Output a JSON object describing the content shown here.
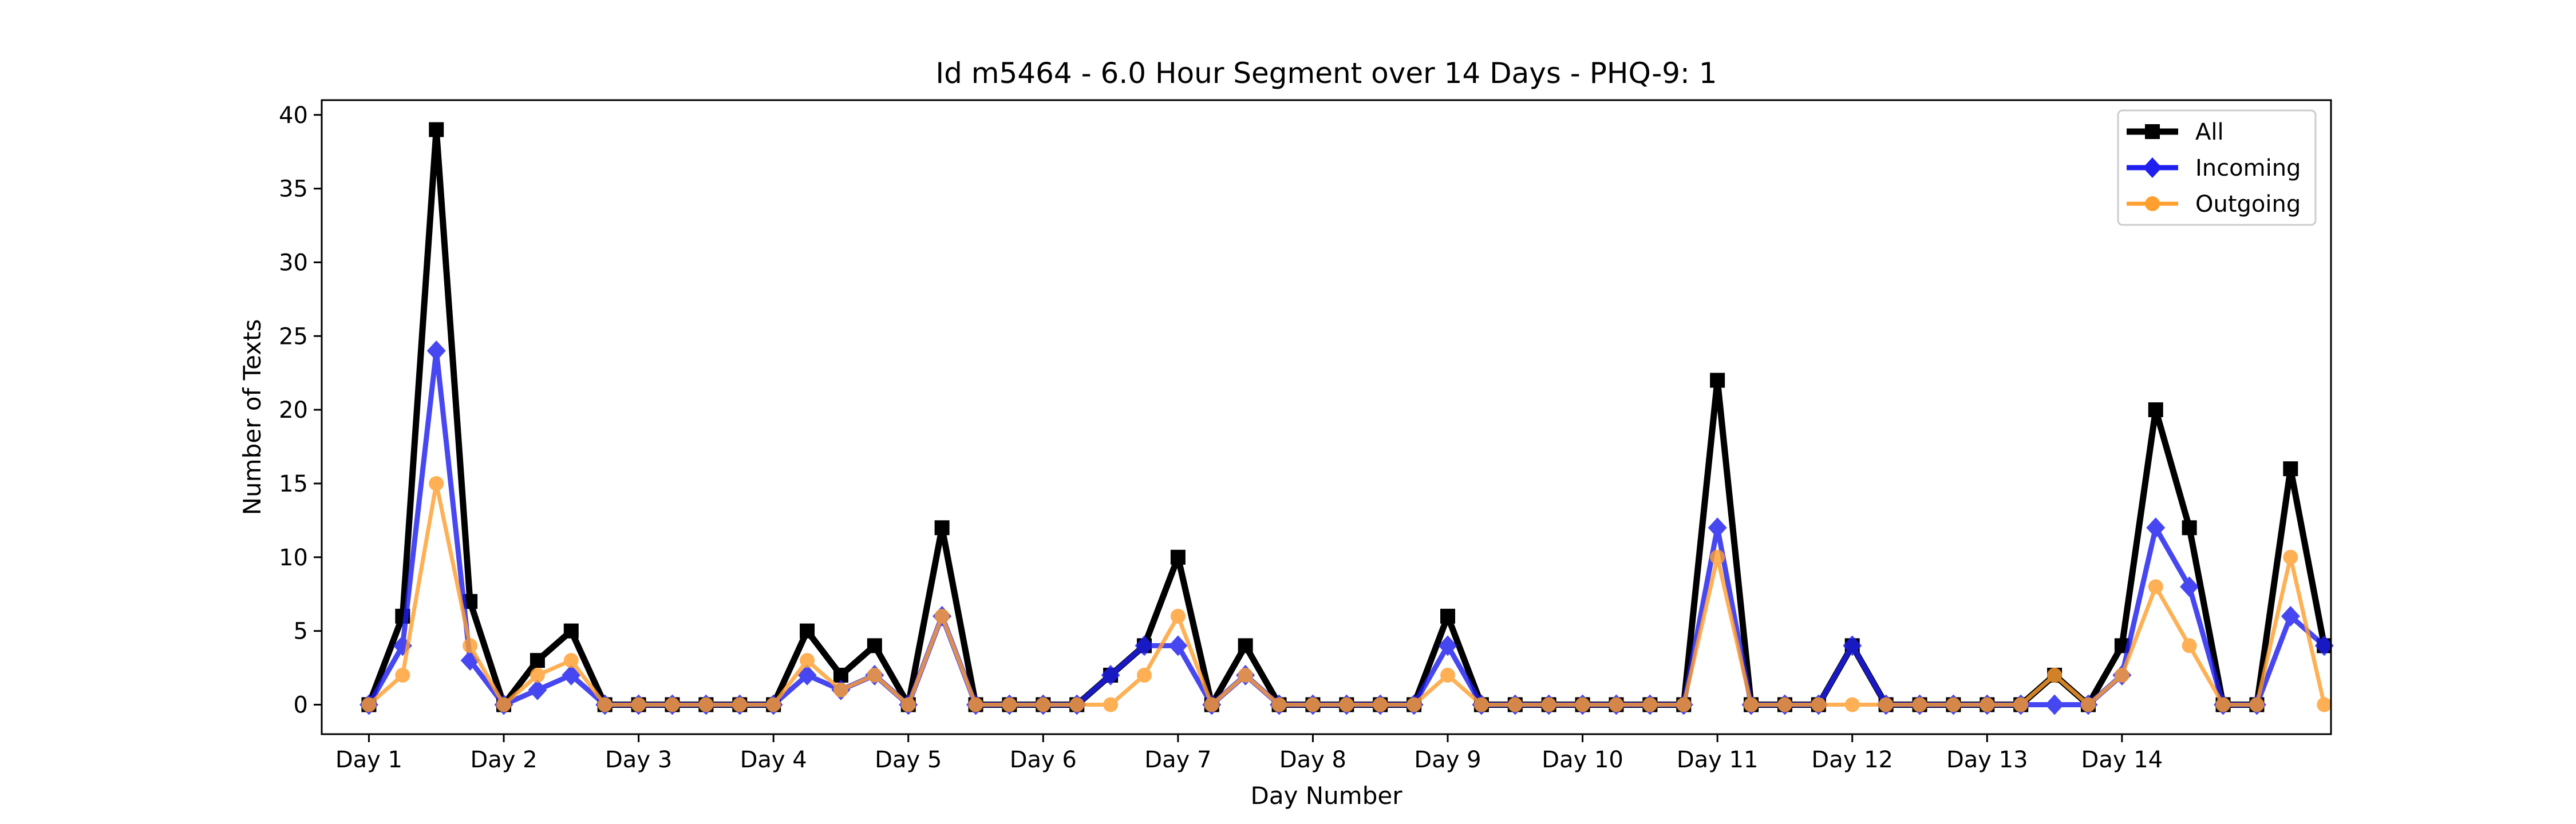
{
  "chart_data": {
    "type": "line",
    "title": "Id m5464 - 6.0 Hour Segment over 14 Days - PHQ-9: 1",
    "xlabel": "Day Number",
    "ylabel": "Number of Texts",
    "ylim": [
      -2,
      41
    ],
    "xlim": [
      -1.4,
      58.2
    ],
    "grid": false,
    "legend_position": "upper right",
    "x_ticks": [
      {
        "pos": 0,
        "label": "Day 1"
      },
      {
        "pos": 4,
        "label": "Day 2"
      },
      {
        "pos": 8,
        "label": "Day 3"
      },
      {
        "pos": 12,
        "label": "Day 4"
      },
      {
        "pos": 16,
        "label": "Day 5"
      },
      {
        "pos": 20,
        "label": "Day 6"
      },
      {
        "pos": 24,
        "label": "Day 7"
      },
      {
        "pos": 28,
        "label": "Day 8"
      },
      {
        "pos": 32,
        "label": "Day 9"
      },
      {
        "pos": 36,
        "label": "Day 10"
      },
      {
        "pos": 40,
        "label": "Day 11"
      },
      {
        "pos": 44,
        "label": "Day 12"
      },
      {
        "pos": 48,
        "label": "Day 13"
      },
      {
        "pos": 52,
        "label": "Day 14"
      }
    ],
    "y_ticks": [
      0,
      5,
      10,
      15,
      20,
      25,
      30,
      35,
      40
    ],
    "series": [
      {
        "name": "All",
        "color": "#000000",
        "marker": "square",
        "values": [
          0,
          6,
          39,
          7,
          0,
          3,
          5,
          0,
          0,
          0,
          0,
          0,
          0,
          5,
          2,
          4,
          0,
          12,
          0,
          0,
          0,
          0,
          2,
          4,
          10,
          0,
          4,
          0,
          0,
          0,
          0,
          0,
          6,
          0,
          0,
          0,
          0,
          0,
          0,
          0,
          22,
          0,
          0,
          0,
          4,
          0,
          0,
          0,
          0,
          0,
          2,
          0,
          4,
          20,
          12,
          0,
          0,
          16,
          4
        ]
      },
      {
        "name": "Incoming",
        "color": "#1f1ff0",
        "marker": "diamond",
        "values": [
          0,
          4,
          24,
          3,
          0,
          1,
          2,
          0,
          0,
          0,
          0,
          0,
          0,
          2,
          1,
          2,
          0,
          6,
          0,
          0,
          0,
          0,
          2,
          4,
          4,
          0,
          2,
          0,
          0,
          0,
          0,
          0,
          4,
          0,
          0,
          0,
          0,
          0,
          0,
          0,
          12,
          0,
          0,
          0,
          4,
          0,
          0,
          0,
          0,
          0,
          0,
          0,
          2,
          12,
          8,
          0,
          0,
          6,
          4
        ]
      },
      {
        "name": "Outgoing",
        "color": "#ff9f2f",
        "marker": "circle",
        "values": [
          0,
          2,
          15,
          4,
          0,
          2,
          3,
          0,
          0,
          0,
          0,
          0,
          0,
          3,
          1,
          2,
          0,
          6,
          0,
          0,
          0,
          0,
          0,
          2,
          6,
          0,
          2,
          0,
          0,
          0,
          0,
          0,
          2,
          0,
          0,
          0,
          0,
          0,
          0,
          0,
          10,
          0,
          0,
          0,
          0,
          0,
          0,
          0,
          0,
          0,
          2,
          0,
          2,
          8,
          4,
          0,
          0,
          10,
          0
        ]
      }
    ]
  }
}
